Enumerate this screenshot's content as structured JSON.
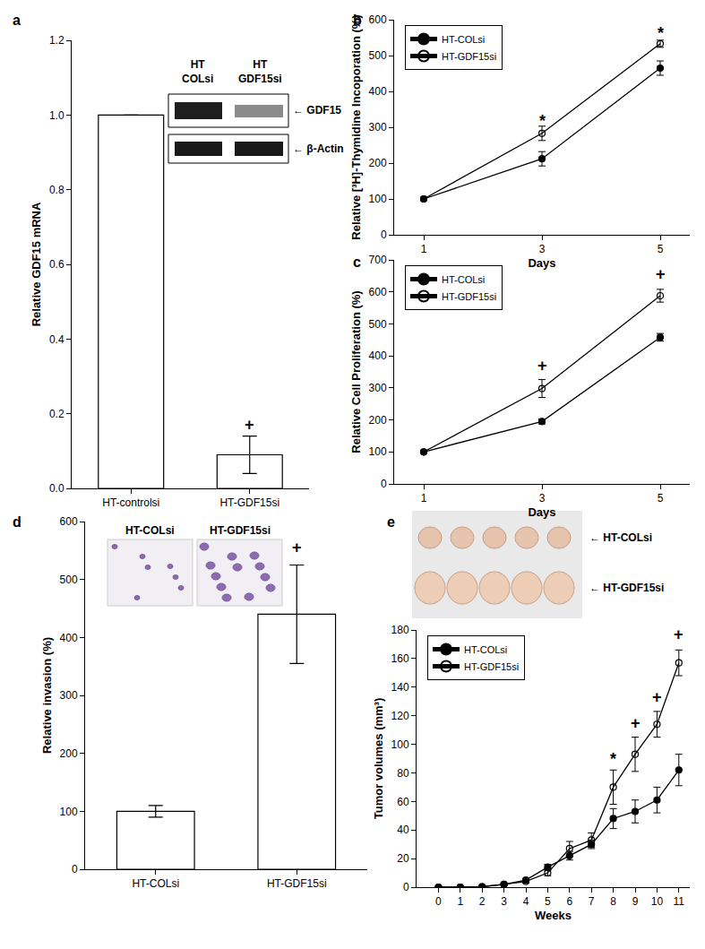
{
  "chart_data": [
    {
      "panel": "a",
      "type": "bar",
      "y_label": "Relative GDF15 mRNA",
      "categories": [
        "HT-controlsi",
        "HT-GDF15si"
      ],
      "values": [
        1.0,
        0.09
      ],
      "error": [
        0,
        0.05
      ],
      "color": "#ffffff",
      "ylim": [
        0,
        1.2
      ],
      "yticks": [
        {
          "value": 0,
          "label": "0.0"
        },
        0.2,
        0.4,
        0.6,
        0.8,
        {
          "value": 1,
          "label": "1.0"
        },
        1.2
      ],
      "annotations": [
        {
          "x": 1,
          "y": 0.17,
          "text": "+"
        }
      ],
      "inset": {
        "lanes": [
          "HT COLsi",
          "HT GDF15si"
        ],
        "bands": [
          "← GDF15",
          "← β-Actin"
        ]
      }
    },
    {
      "panel": "b",
      "type": "line",
      "x_label": "Days",
      "y_label": "Relative [³H]-Thymidine Incoporation (%)",
      "x": [
        1,
        3,
        5
      ],
      "xlim": [
        0.5,
        5.5
      ],
      "xticks": [
        1,
        3,
        5
      ],
      "ylim": [
        0,
        600
      ],
      "yticks": [
        0,
        100,
        200,
        300,
        400,
        500,
        600
      ],
      "legend": "upper left",
      "series": [
        {
          "name": "HT-COLsi",
          "color": "#000000",
          "marker": "circle",
          "values": [
            100,
            212,
            465
          ],
          "error": [
            0,
            20,
            20
          ]
        },
        {
          "name": "HT-GDF15si",
          "color": "#000000",
          "marker": "circle-open",
          "values": [
            100,
            283,
            533
          ],
          "error": [
            0,
            20,
            10
          ]
        }
      ],
      "annotations": [
        {
          "x": 3,
          "y": 318,
          "text": "*"
        },
        {
          "x": 5,
          "y": 563,
          "text": "*"
        }
      ]
    },
    {
      "panel": "c",
      "type": "line",
      "x_label": "Days",
      "y_label": "Relative Cell Proliferation (%)",
      "x": [
        1,
        3,
        5
      ],
      "xlim": [
        0.5,
        5.5
      ],
      "xticks": [
        1,
        3,
        5
      ],
      "ylim": [
        0,
        700
      ],
      "yticks": [
        0,
        100,
        200,
        300,
        400,
        500,
        600,
        700
      ],
      "legend": "upper left",
      "series": [
        {
          "name": "HT-COLsi",
          "color": "#000000",
          "marker": "circle",
          "values": [
            100,
            195,
            458
          ],
          "error": [
            0,
            8,
            12
          ]
        },
        {
          "name": "HT-GDF15si",
          "color": "#000000",
          "marker": "circle-open",
          "values": [
            100,
            298,
            588
          ],
          "error": [
            0,
            28,
            20
          ]
        }
      ],
      "annotations": [
        {
          "x": 3,
          "y": 370,
          "text": "+"
        },
        {
          "x": 5,
          "y": 655,
          "text": "+"
        }
      ]
    },
    {
      "panel": "d",
      "type": "bar",
      "y_label": "Relative invasion (%)",
      "categories": [
        "HT-COLsi",
        "HT-GDF15si"
      ],
      "values": [
        100,
        440
      ],
      "error": [
        10,
        85
      ],
      "color": "#ffffff",
      "ylim": [
        0,
        600
      ],
      "yticks": [
        0,
        100,
        200,
        300,
        400,
        500,
        600
      ],
      "annotations": [
        {
          "x": 1,
          "y": 555,
          "text": "+"
        }
      ],
      "inset": {
        "labels": [
          "HT-COLsi",
          "HT-GDF15si"
        ]
      }
    },
    {
      "panel": "e",
      "type": "line",
      "x_label": "Weeks",
      "y_label": "Tumor volumes (mm³)",
      "x": [
        0,
        1,
        2,
        3,
        4,
        5,
        6,
        7,
        8,
        9,
        10,
        11
      ],
      "xlim": [
        -1,
        11.5
      ],
      "xticks": [
        0,
        1,
        2,
        3,
        4,
        5,
        6,
        7,
        8,
        9,
        10,
        11
      ],
      "ylim": [
        0,
        180
      ],
      "yticks": [
        0,
        20,
        40,
        60,
        80,
        100,
        120,
        140,
        160,
        180
      ],
      "legend": "upper left",
      "series": [
        {
          "name": "HT-COLsi",
          "color": "#000000",
          "marker": "circle",
          "values": [
            0,
            0,
            0.3,
            2,
            5,
            14,
            22,
            30,
            48,
            53,
            61,
            82
          ],
          "error": [
            0,
            0,
            0,
            0.5,
            1,
            2,
            3,
            3,
            7,
            8,
            9,
            11
          ]
        },
        {
          "name": "HT-GDF15si",
          "color": "#000000",
          "marker": "circle-open",
          "values": [
            0,
            0,
            0.3,
            2,
            4,
            10,
            27,
            33,
            70,
            93,
            114,
            157
          ],
          "error": [
            0,
            0,
            0,
            0.5,
            1,
            2,
            5,
            5,
            12,
            12,
            9,
            9
          ]
        }
      ],
      "annotations": [
        {
          "x": 8,
          "y": 90,
          "text": "*"
        },
        {
          "x": 9,
          "y": 115,
          "text": "+"
        },
        {
          "x": 10,
          "y": 133,
          "text": "+"
        },
        {
          "x": 11,
          "y": 177,
          "text": "+"
        }
      ],
      "inset": {
        "labels": [
          "← HT-COLsi",
          "← HT-GDF15si"
        ]
      }
    }
  ]
}
